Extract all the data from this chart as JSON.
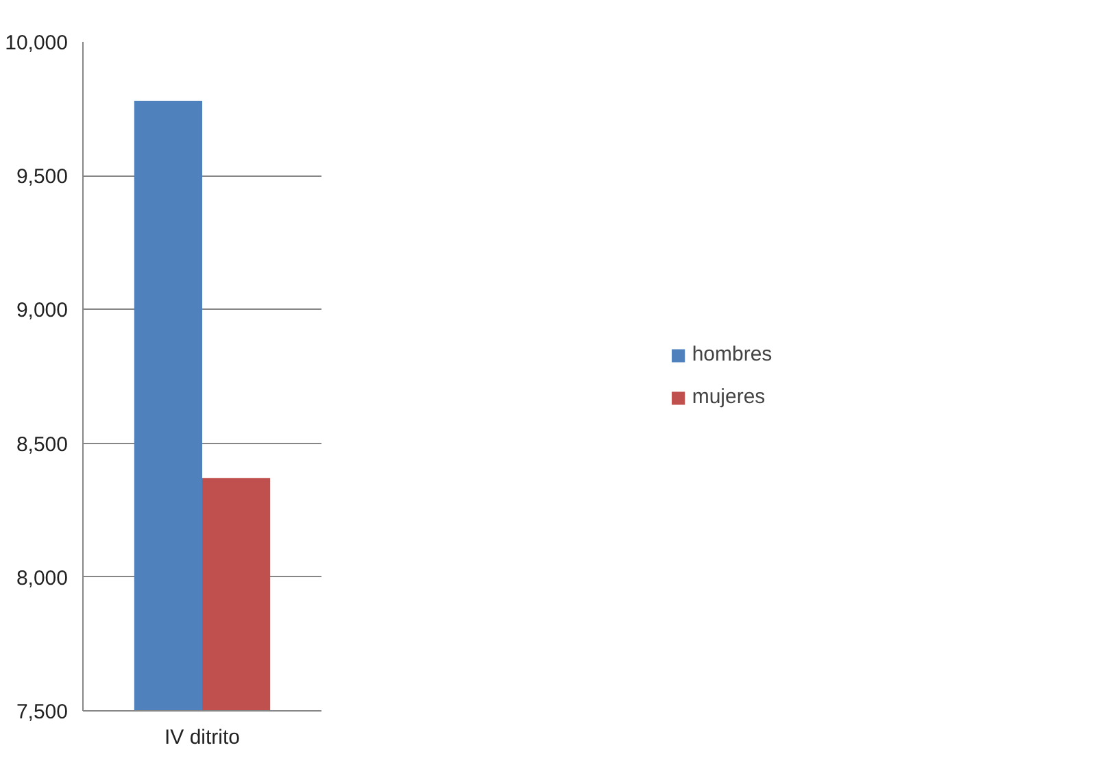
{
  "chart_data": {
    "type": "bar",
    "categories": [
      "IV ditrito"
    ],
    "series": [
      {
        "name": "hombres",
        "color": "#4f81bd",
        "values": [
          9780
        ]
      },
      {
        "name": "mujeres",
        "color": "#c0504d",
        "values": [
          8370
        ]
      }
    ],
    "ylim": [
      7500,
      10000
    ],
    "yticks": [
      {
        "value": 7500,
        "label": "7,500"
      },
      {
        "value": 8000,
        "label": "8,000"
      },
      {
        "value": 8500,
        "label": "8,500"
      },
      {
        "value": 9000,
        "label": "9,000"
      },
      {
        "value": 9500,
        "label": "9,500"
      },
      {
        "value": 10000,
        "label": "10,000"
      }
    ],
    "grid": "y",
    "legend": "right"
  }
}
